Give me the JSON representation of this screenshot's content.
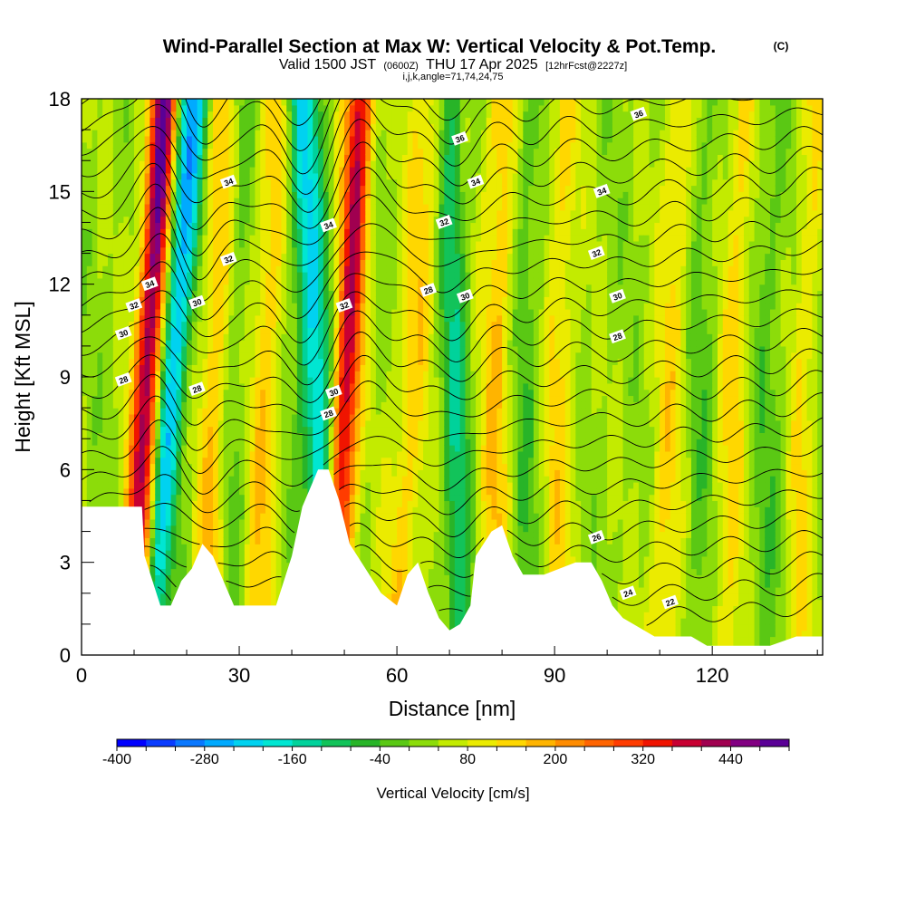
{
  "title": {
    "main": "Wind-Parallel Section at Max W: Vertical Velocity & Pot.Temp.",
    "copyright": "(C)",
    "valid_prefix": "Valid 1500 JST",
    "valid_utc": "(0600Z)",
    "valid_date": "THU 17 Apr 2025",
    "forecast": "[12hrFcst@2227z]",
    "indices": "i,j,k,angle=71,74,24,75"
  },
  "chart_data": {
    "type": "heatmap",
    "xlabel": "Distance [nm]",
    "ylabel": "Height [Kft MSL]",
    "xlim": [
      0,
      141
    ],
    "ylim": [
      0,
      18
    ],
    "x_ticks": [
      0,
      30,
      60,
      90,
      120
    ],
    "y_ticks": [
      0,
      3,
      6,
      9,
      12,
      15,
      18
    ],
    "grid": false,
    "colorbar": {
      "label": "Vertical Velocity [cm/s]",
      "range": [
        -400,
        520
      ],
      "step": 40,
      "tick_labels": [
        "-400",
        "-280",
        "-160",
        "-40",
        "80",
        "200",
        "320",
        "440"
      ],
      "tick_values": [
        -400,
        -280,
        -160,
        -40,
        80,
        200,
        320,
        440
      ],
      "colors": [
        "#0000ff",
        "#0a3cff",
        "#0a78ff",
        "#00aaff",
        "#00d2f0",
        "#00e6d2",
        "#00d29b",
        "#12c35a",
        "#28b428",
        "#5ac814",
        "#8cdc0a",
        "#c3eb00",
        "#ebeb00",
        "#ffd700",
        "#ffb400",
        "#ff8c00",
        "#ff6400",
        "#ff3c00",
        "#f01400",
        "#c80032",
        "#a00050",
        "#820082",
        "#5a0096"
      ],
      "placement": "bottom"
    },
    "terrain_profile_kft": [
      [
        0,
        4.8
      ],
      [
        4,
        4.8
      ],
      [
        8,
        4.8
      ],
      [
        10,
        4.8
      ],
      [
        11.5,
        4.8
      ],
      [
        12,
        3.2
      ],
      [
        13.5,
        2.4
      ],
      [
        15,
        1.6
      ],
      [
        17,
        1.6
      ],
      [
        19,
        2.4
      ],
      [
        21,
        2.8
      ],
      [
        23,
        3.6
      ],
      [
        25,
        3.2
      ],
      [
        27,
        2.4
      ],
      [
        29,
        1.6
      ],
      [
        33,
        1.6
      ],
      [
        37,
        1.6
      ],
      [
        40,
        3.2
      ],
      [
        42,
        4.8
      ],
      [
        45,
        6.0
      ],
      [
        47,
        6.0
      ],
      [
        49,
        5.0
      ],
      [
        51,
        3.6
      ],
      [
        54,
        2.8
      ],
      [
        57,
        2.0
      ],
      [
        60,
        1.6
      ],
      [
        62,
        2.6
      ],
      [
        64,
        3.0
      ],
      [
        66,
        2.0
      ],
      [
        68,
        1.2
      ],
      [
        70,
        0.8
      ],
      [
        72,
        1.0
      ],
      [
        74,
        1.6
      ],
      [
        75,
        3.2
      ],
      [
        78,
        4.0
      ],
      [
        80,
        4.2
      ],
      [
        82,
        3.2
      ],
      [
        84,
        2.6
      ],
      [
        88,
        2.6
      ],
      [
        91,
        2.8
      ],
      [
        94,
        3.0
      ],
      [
        97,
        3.0
      ],
      [
        99,
        2.4
      ],
      [
        101,
        1.6
      ],
      [
        103,
        1.2
      ],
      [
        105,
        1.0
      ],
      [
        109,
        0.6
      ],
      [
        116,
        0.6
      ],
      [
        119,
        0.3
      ],
      [
        125,
        0.3
      ],
      [
        131,
        0.3
      ],
      [
        136,
        0.6
      ],
      [
        141,
        0.6
      ]
    ],
    "updrafts": [
      {
        "x_base": 10,
        "x_top": 16,
        "peak_cm_s": 480,
        "width_nm": 2.8
      },
      {
        "x_base": 48,
        "x_top": 53,
        "peak_cm_s": 360,
        "width_nm": 2.6
      },
      {
        "x_base": 24,
        "x_top": 27,
        "peak_cm_s": 140,
        "width_nm": 3.0
      },
      {
        "x_base": 33,
        "x_top": 37,
        "peak_cm_s": 120,
        "width_nm": 3.0
      },
      {
        "x_base": 60,
        "x_top": 66,
        "peak_cm_s": 110,
        "width_nm": 3.5
      },
      {
        "x_base": 78,
        "x_top": 80,
        "peak_cm_s": 130,
        "width_nm": 3.0
      },
      {
        "x_base": 90,
        "x_top": 92,
        "peak_cm_s": 100,
        "width_nm": 3.0
      },
      {
        "x_base": 110,
        "x_top": 114,
        "peak_cm_s": 100,
        "width_nm": 3.0
      },
      {
        "x_base": 122,
        "x_top": 126,
        "peak_cm_s": 100,
        "width_nm": 3.0
      },
      {
        "x_base": 136,
        "x_top": 139,
        "peak_cm_s": 90,
        "width_nm": 2.5
      }
    ],
    "downdrafts": [
      {
        "x_base": 12,
        "x_top": 21,
        "peak_cm_s": -320,
        "width_nm": 3.2
      },
      {
        "x_base": 47,
        "x_top": 42,
        "peak_cm_s": -240,
        "width_nm": 3.0
      },
      {
        "x_base": 72,
        "x_top": 70,
        "peak_cm_s": -140,
        "width_nm": 2.5
      },
      {
        "x_base": 28,
        "x_top": 30,
        "peak_cm_s": -60,
        "width_nm": 3.0
      },
      {
        "x_base": 84,
        "x_top": 85,
        "peak_cm_s": -60,
        "width_nm": 3.0
      },
      {
        "x_base": 118,
        "x_top": 118,
        "peak_cm_s": -50,
        "width_nm": 3.0
      },
      {
        "x_base": 130,
        "x_top": 131,
        "peak_cm_s": -50,
        "width_nm": 3.0
      }
    ],
    "isentropes_pot_temp": [
      {
        "label": "22",
        "label_at": [
          112,
          1.7
        ]
      },
      {
        "label": "24",
        "label_at": [
          104,
          2.0
        ]
      },
      {
        "label": "26",
        "label_at": [
          98,
          3.8
        ]
      },
      {
        "label": "28",
        "label_at": [
          8,
          8.9
        ]
      },
      {
        "label": "28",
        "label_at": [
          22,
          8.6
        ]
      },
      {
        "label": "28",
        "label_at": [
          47,
          7.8
        ]
      },
      {
        "label": "28",
        "label_at": [
          66,
          11.8
        ]
      },
      {
        "label": "28",
        "label_at": [
          102,
          10.3
        ]
      },
      {
        "label": "30",
        "label_at": [
          8,
          10.4
        ]
      },
      {
        "label": "30",
        "label_at": [
          22,
          11.4
        ]
      },
      {
        "label": "30",
        "label_at": [
          48,
          8.5
        ]
      },
      {
        "label": "30",
        "label_at": [
          73,
          11.6
        ]
      },
      {
        "label": "30",
        "label_at": [
          102,
          11.6
        ]
      },
      {
        "label": "32",
        "label_at": [
          10,
          11.3
        ]
      },
      {
        "label": "32",
        "label_at": [
          28,
          12.8
        ]
      },
      {
        "label": "32",
        "label_at": [
          50,
          11.3
        ]
      },
      {
        "label": "32",
        "label_at": [
          69,
          14.0
        ]
      },
      {
        "label": "32",
        "label_at": [
          98,
          13.0
        ]
      },
      {
        "label": "34",
        "label_at": [
          13,
          12.0
        ]
      },
      {
        "label": "34",
        "label_at": [
          28,
          15.3
        ]
      },
      {
        "label": "34",
        "label_at": [
          47,
          13.9
        ]
      },
      {
        "label": "34",
        "label_at": [
          75,
          15.3
        ]
      },
      {
        "label": "34",
        "label_at": [
          99,
          15.0
        ]
      },
      {
        "label": "36",
        "label_at": [
          72,
          16.7
        ]
      },
      {
        "label": "36",
        "label_at": [
          106,
          17.5
        ]
      }
    ]
  }
}
